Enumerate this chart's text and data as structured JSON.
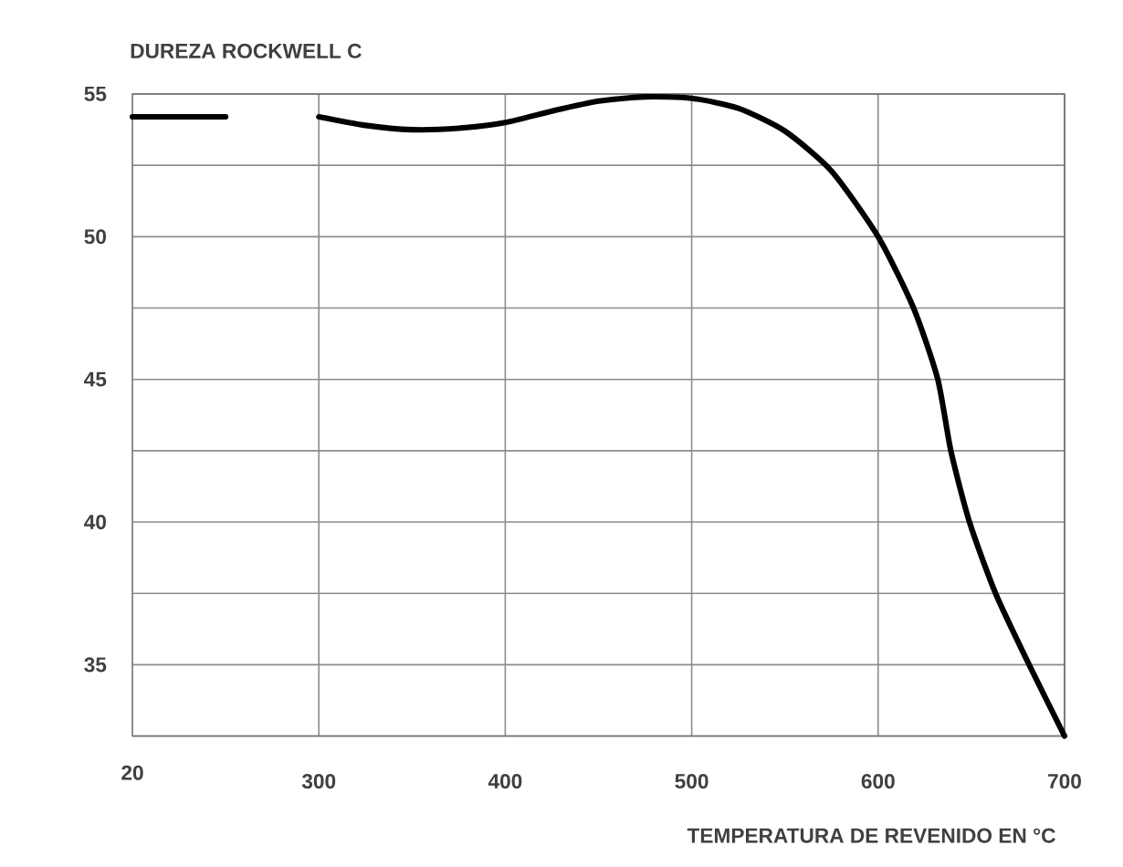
{
  "chart_data": {
    "type": "line",
    "ylabel": "DUREZA ROCKWELL C",
    "xlabel": "TEMPERATURA DE REVENIDO EN °C",
    "x": [
      200,
      250,
      275,
      300,
      325,
      350,
      375,
      400,
      425,
      450,
      475,
      500,
      525,
      550,
      575,
      600,
      619,
      632,
      639,
      649,
      663,
      681,
      700
    ],
    "series": [
      {
        "color": "#000000",
        "values": [
          54.2,
          54.2,
          null,
          54.2,
          53.9,
          53.75,
          53.8,
          54.0,
          54.4,
          54.75,
          54.9,
          54.85,
          54.5,
          53.7,
          52.3,
          50.0,
          47.5,
          45.0,
          42.5,
          40.0,
          37.5,
          35.0,
          32.5
        ]
      }
    ],
    "annotations": [
      "20"
    ],
    "xlim": [
      200,
      700
    ],
    "ylim": [
      32.5,
      55
    ],
    "xticks": [
      300,
      400,
      500,
      600,
      700
    ],
    "yticks": [
      {
        "value": 32.5,
        "label": null
      },
      35,
      {
        "value": 37.5,
        "label": null
      },
      40,
      {
        "value": 42.5,
        "label": null
      },
      45,
      {
        "value": 47.5,
        "label": null
      },
      50,
      {
        "value": 52.5,
        "label": null
      },
      55
    ],
    "grid": true,
    "line_style": "solid"
  }
}
